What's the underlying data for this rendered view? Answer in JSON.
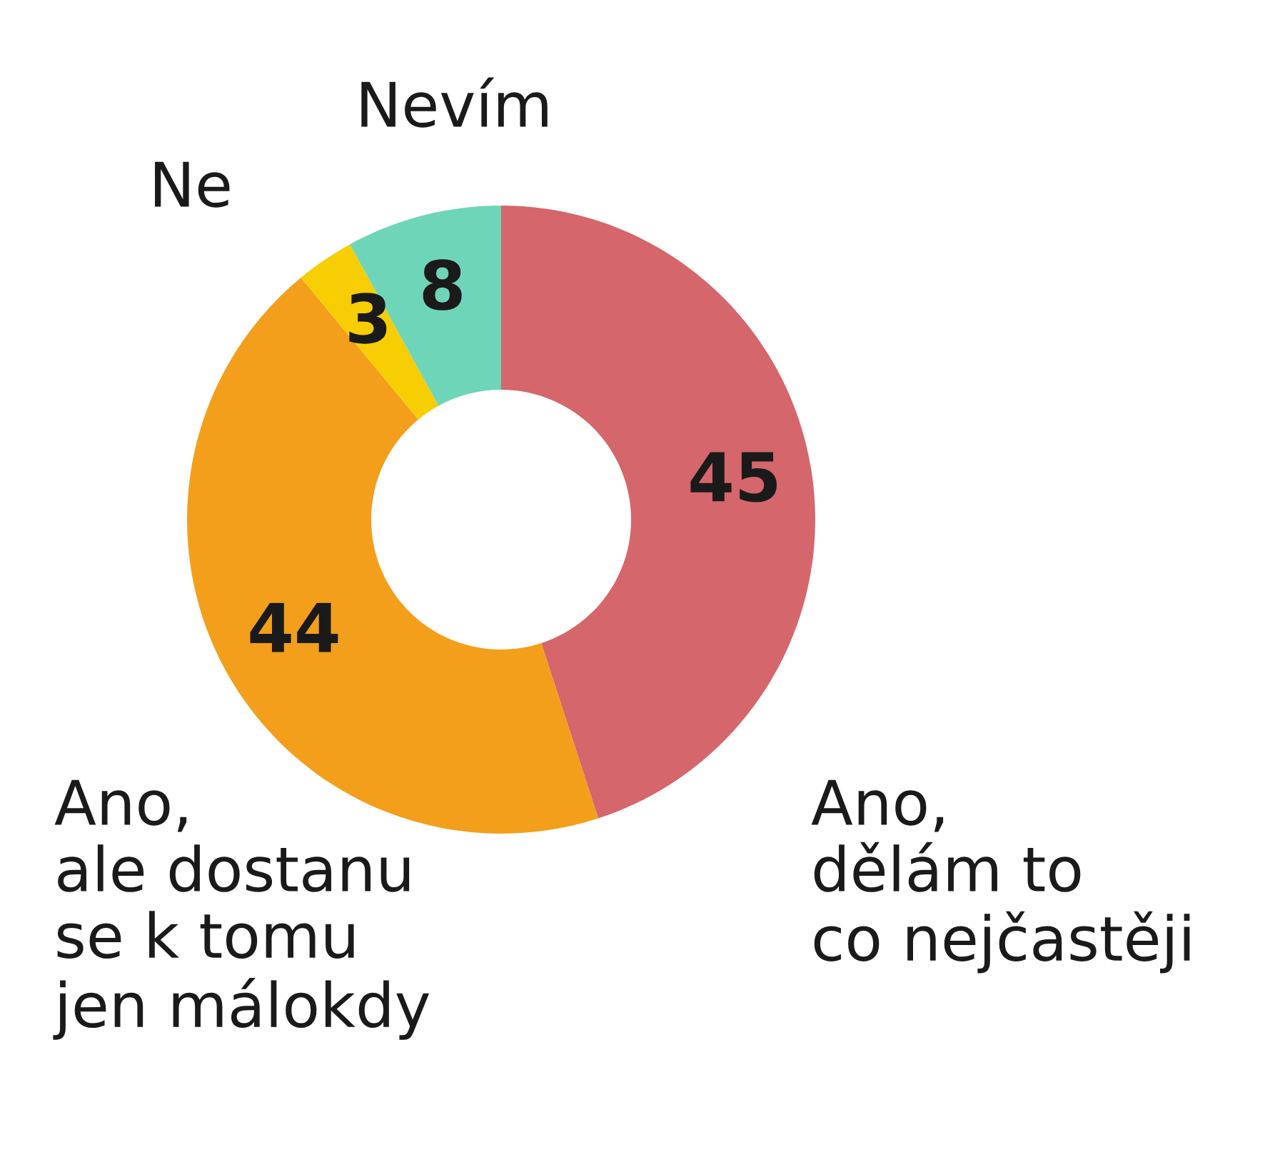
{
  "chart_data": {
    "type": "donut",
    "categories": [
      "Ano,\ndělám to\nco nejčastěji",
      "Ano,\nale dostanu\nse k tomu\njen málokdy",
      "Ne",
      "Nevím"
    ],
    "values": [
      45,
      44,
      3,
      8
    ],
    "colors": [
      "#d5666c",
      "#f39f1c",
      "#f7cd03",
      "#6fd5b9"
    ],
    "data_labels": true
  }
}
